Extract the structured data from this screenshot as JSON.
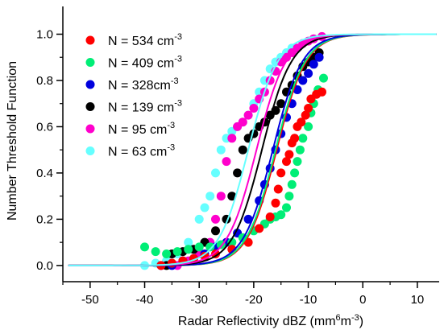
{
  "chart_data": {
    "type": "scatter",
    "title": "",
    "xlabel": "Radar Reflectivity dBZ (mm",
    "xlabel_sup1": "6",
    "xlabel_mid": "m",
    "xlabel_sup2": "-3",
    "xlabel_end": ")",
    "ylabel": "Number Threshold Function",
    "xlim": [
      -55,
      14
    ],
    "ylim": [
      -0.07,
      1.12
    ],
    "x_ticks": [
      -50,
      -40,
      -30,
      -20,
      -10,
      0,
      10
    ],
    "y_ticks": [
      0.0,
      0.2,
      0.4,
      0.6,
      0.8,
      1.0
    ],
    "y_tick_labels": [
      "0.0",
      "0.2",
      "0.4",
      "0.6",
      "0.8",
      "1.0"
    ],
    "grid": false,
    "legend_position": "top-left",
    "series": [
      {
        "name": "N = 534 cm",
        "name_sup": "-3",
        "color": "#ff0000",
        "fit": {
          "mid": -15.8,
          "width": 2.7
        },
        "points": [
          [
            -37,
            0.0
          ],
          [
            -35,
            0.01
          ],
          [
            -33,
            0.02
          ],
          [
            -31,
            0.03
          ],
          [
            -29,
            0.04
          ],
          [
            -27,
            0.05
          ],
          [
            -24,
            0.07
          ],
          [
            -21,
            0.1
          ],
          [
            -19,
            0.16
          ],
          [
            -17,
            0.21
          ],
          [
            -16,
            0.27
          ],
          [
            -15.5,
            0.33
          ],
          [
            -15,
            0.4
          ],
          [
            -14,
            0.45
          ],
          [
            -13.5,
            0.48
          ],
          [
            -13,
            0.53
          ],
          [
            -12.5,
            0.55
          ],
          [
            -12,
            0.6
          ],
          [
            -11.3,
            0.62
          ],
          [
            -10.5,
            0.65
          ],
          [
            -10,
            0.68
          ],
          [
            -9.5,
            0.72
          ],
          [
            -8.5,
            0.74
          ],
          [
            -7.5,
            0.75
          ]
        ]
      },
      {
        "name": "N = 409 cm",
        "name_sup": "-3",
        "color": "#00ee76",
        "fit": {
          "mid": -16.0,
          "width": 2.7
        },
        "points": [
          [
            -40,
            0.08
          ],
          [
            -38,
            0.06
          ],
          [
            -36,
            0.05
          ],
          [
            -34,
            0.06
          ],
          [
            -32,
            0.07
          ],
          [
            -30,
            0.08
          ],
          [
            -28,
            0.08
          ],
          [
            -26,
            0.09
          ],
          [
            -24,
            0.1
          ],
          [
            -22,
            0.12
          ],
          [
            -20,
            0.15
          ],
          [
            -18,
            0.18
          ],
          [
            -17,
            0.2
          ],
          [
            -16,
            0.21
          ],
          [
            -15,
            0.22
          ],
          [
            -14,
            0.25
          ],
          [
            -13.5,
            0.3
          ],
          [
            -13,
            0.35
          ],
          [
            -12.5,
            0.4
          ],
          [
            -12,
            0.45
          ],
          [
            -11.5,
            0.5
          ],
          [
            -11,
            0.55
          ],
          [
            -10,
            0.6
          ],
          [
            -9.5,
            0.66
          ],
          [
            -9,
            0.7
          ],
          [
            -8.2,
            0.76
          ],
          [
            -7.2,
            0.81
          ]
        ]
      },
      {
        "name": "N = 328cm",
        "name_sup": "-3",
        "color": "#0000dd",
        "fit": {
          "mid": -16.5,
          "width": 2.7
        },
        "points": [
          [
            -37,
            0.0
          ],
          [
            -35,
            0.0
          ],
          [
            -33,
            0.02
          ],
          [
            -31,
            0.03
          ],
          [
            -29,
            0.05
          ],
          [
            -27,
            0.08
          ],
          [
            -25,
            0.1
          ],
          [
            -23,
            0.14
          ],
          [
            -21,
            0.2
          ],
          [
            -19,
            0.28
          ],
          [
            -18,
            0.35
          ],
          [
            -17,
            0.42
          ],
          [
            -16,
            0.5
          ],
          [
            -15,
            0.57
          ],
          [
            -14,
            0.64
          ],
          [
            -13,
            0.7
          ],
          [
            -12,
            0.76
          ],
          [
            -11,
            0.8
          ],
          [
            -10,
            0.83
          ],
          [
            -9,
            0.87
          ],
          [
            -8,
            0.9
          ]
        ]
      },
      {
        "name": "N = 139 cm",
        "name_sup": "-3",
        "color": "#000000",
        "fit": {
          "mid": -18.5,
          "width": 2.7
        },
        "points": [
          [
            -36,
            0.0
          ],
          [
            -35,
            0.05
          ],
          [
            -33,
            0.06
          ],
          [
            -31,
            0.07
          ],
          [
            -29,
            0.1
          ],
          [
            -27,
            0.15
          ],
          [
            -25,
            0.2
          ],
          [
            -24,
            0.3
          ],
          [
            -23,
            0.4
          ],
          [
            -22,
            0.5
          ],
          [
            -21,
            0.55
          ],
          [
            -20,
            0.57
          ],
          [
            -19,
            0.6
          ],
          [
            -18,
            0.62
          ],
          [
            -17,
            0.65
          ],
          [
            -16,
            0.67
          ],
          [
            -15,
            0.7
          ],
          [
            -14,
            0.75
          ],
          [
            -13,
            0.78
          ],
          [
            -12,
            0.82
          ],
          [
            -11,
            0.86
          ],
          [
            -10,
            0.88
          ],
          [
            -9,
            0.9
          ],
          [
            -8,
            0.92
          ]
        ]
      },
      {
        "name": "N = 95 cm",
        "name_sup": "-3",
        "color": "#ff00cc",
        "fit": {
          "mid": -19.5,
          "width": 2.7
        },
        "points": [
          [
            -34,
            0.0
          ],
          [
            -32,
            0.02
          ],
          [
            -30,
            0.05
          ],
          [
            -28,
            0.1
          ],
          [
            -27,
            0.2
          ],
          [
            -26,
            0.3
          ],
          [
            -25,
            0.45
          ],
          [
            -24,
            0.55
          ],
          [
            -23,
            0.6
          ],
          [
            -22,
            0.62
          ],
          [
            -21,
            0.65
          ],
          [
            -20,
            0.68
          ],
          [
            -19,
            0.72
          ],
          [
            -18,
            0.75
          ],
          [
            -17,
            0.8
          ],
          [
            -16,
            0.84
          ],
          [
            -15,
            0.88
          ],
          [
            -14,
            0.9
          ],
          [
            -13,
            0.92
          ],
          [
            -12,
            0.94
          ],
          [
            -11,
            0.96
          ],
          [
            -10,
            0.97
          ],
          [
            -9,
            0.98
          ],
          [
            -7.5,
            0.99
          ]
        ]
      },
      {
        "name": "N = 63 cm",
        "name_sup": "-3",
        "color": "#66ffff",
        "fit": {
          "mid": -21.0,
          "width": 2.7
        },
        "points": [
          [
            -40,
            0.0
          ],
          [
            -38,
            0.01
          ],
          [
            -36,
            0.02
          ],
          [
            -34,
            0.05
          ],
          [
            -32,
            0.1
          ],
          [
            -30,
            0.2
          ],
          [
            -29,
            0.25
          ],
          [
            -28,
            0.3
          ],
          [
            -27,
            0.4
          ],
          [
            -26,
            0.5
          ],
          [
            -25,
            0.55
          ],
          [
            -24,
            0.58
          ],
          [
            -23,
            0.6
          ],
          [
            -22,
            0.62
          ],
          [
            -21,
            0.65
          ],
          [
            -20,
            0.7
          ],
          [
            -19,
            0.75
          ],
          [
            -18,
            0.8
          ],
          [
            -17,
            0.85
          ],
          [
            -16,
            0.88
          ],
          [
            -15,
            0.9
          ],
          [
            -14,
            0.92
          ],
          [
            -13,
            0.94
          ]
        ]
      }
    ]
  }
}
